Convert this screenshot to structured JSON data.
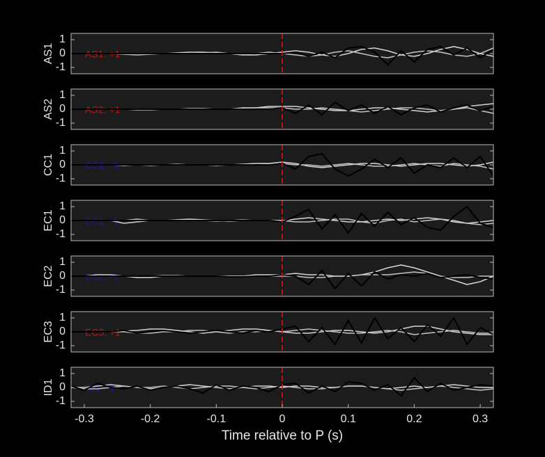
{
  "chart_data": [
    {
      "type": "line",
      "ylabel": "AS1",
      "annotation": "AS1: +1",
      "annotation_color": "#cc1111",
      "xlim": [
        -0.32,
        0.32
      ],
      "ylim": [
        -1.45,
        1.45
      ],
      "yticks": [
        -1,
        0,
        1
      ],
      "marker_x": 0,
      "marker_color": "#dd1111",
      "x": [
        -0.32,
        -0.3,
        -0.28,
        -0.26,
        -0.24,
        -0.22,
        -0.2,
        -0.18,
        -0.16,
        -0.14,
        -0.12,
        -0.1,
        -0.08,
        -0.06,
        -0.04,
        -0.02,
        0,
        0.02,
        0.04,
        0.06,
        0.08,
        0.1,
        0.12,
        0.14,
        0.16,
        0.18,
        0.2,
        0.22,
        0.24,
        0.26,
        0.28,
        0.3,
        0.32
      ],
      "series": [
        {
          "color": "#d4d4d4",
          "values": [
            0,
            0,
            0,
            0,
            0,
            0,
            0,
            0,
            0.05,
            0.1,
            0.1,
            0.05,
            0,
            -0.1,
            -0.1,
            0,
            0.1,
            0.2,
            0.1,
            -0.1,
            -0.2,
            0,
            0.3,
            0.4,
            0.2,
            -0.1,
            -0.2,
            0,
            0.3,
            0.5,
            0.3,
            0,
            -0.2
          ]
        },
        {
          "color": "#c4c4c4",
          "values": [
            0,
            0,
            0,
            0,
            -0.05,
            -0.1,
            -0.05,
            0,
            0,
            0,
            0.05,
            0.1,
            0,
            -0.1,
            0,
            0.1,
            0,
            -0.1,
            -0.2,
            -0.1,
            0.1,
            0.2,
            0,
            -0.2,
            -0.3,
            -0.1,
            0.1,
            0.2,
            0.1,
            -0.1,
            -0.2,
            0,
            0.4
          ]
        },
        {
          "color": "#000000",
          "values": [
            0,
            0,
            0,
            0,
            0,
            0,
            0,
            0,
            0,
            0,
            0,
            0,
            0,
            0,
            0,
            0,
            0,
            0.1,
            -0.2,
            0.1,
            -0.3,
            0.4,
            0.5,
            0.1,
            -0.8,
            0.2,
            -0.6,
            0.3,
            0.5,
            -0.1,
            0.4,
            -0.3,
            0.3
          ]
        }
      ]
    },
    {
      "type": "line",
      "ylabel": "AS2",
      "annotation": "AS2: +1",
      "annotation_color": "#cc1111",
      "xlim": [
        -0.32,
        0.32
      ],
      "ylim": [
        -1.45,
        1.45
      ],
      "yticks": [
        -1,
        0,
        1
      ],
      "marker_x": 0,
      "marker_color": "#dd1111",
      "x": [
        -0.32,
        -0.3,
        -0.28,
        -0.26,
        -0.24,
        -0.22,
        -0.2,
        -0.18,
        -0.16,
        -0.14,
        -0.12,
        -0.1,
        -0.08,
        -0.06,
        -0.04,
        -0.02,
        0,
        0.02,
        0.04,
        0.06,
        0.08,
        0.1,
        0.12,
        0.14,
        0.16,
        0.18,
        0.2,
        0.22,
        0.24,
        0.26,
        0.28,
        0.3,
        0.32
      ],
      "series": [
        {
          "color": "#d4d4d4",
          "values": [
            0,
            0,
            0,
            0,
            0,
            0,
            0,
            0,
            0,
            0.05,
            0.05,
            0,
            0,
            0.1,
            0.1,
            0.2,
            0.2,
            0.2,
            0.1,
            0,
            -0.1,
            -0.1,
            0,
            0.1,
            0.1,
            0,
            -0.1,
            -0.2,
            -0.1,
            0,
            0.2,
            0.3,
            0.4
          ]
        },
        {
          "color": "#c4c4c4",
          "values": [
            0,
            0,
            0,
            0,
            0,
            -0.05,
            -0.05,
            0,
            0,
            0,
            0,
            0,
            0,
            0.05,
            0.1,
            0.1,
            0.1,
            0,
            0,
            0.1,
            0,
            -0.1,
            -0.2,
            -0.1,
            0,
            0.1,
            0.1,
            0,
            -0.1,
            0,
            0.1,
            -0.1,
            -0.3
          ]
        },
        {
          "color": "#000000",
          "values": [
            0,
            0,
            0,
            0,
            0,
            0,
            0,
            0,
            0,
            0,
            0,
            0,
            0,
            0,
            0,
            0,
            0.1,
            -0.3,
            0.3,
            -0.4,
            0.5,
            -0.1,
            0.3,
            -0.3,
            0.2,
            -0.4,
            0.1,
            0.3,
            -0.2,
            0.1,
            0.3,
            -0.1,
            0.2
          ]
        }
      ]
    },
    {
      "type": "line",
      "ylabel": "CC1",
      "annotation": "CC1: -1",
      "annotation_color": "#1a1aa8",
      "xlim": [
        -0.32,
        0.32
      ],
      "ylim": [
        -1.45,
        1.45
      ],
      "yticks": [
        -1,
        0,
        1
      ],
      "marker_x": 0,
      "marker_color": "#dd1111",
      "x": [
        -0.32,
        -0.3,
        -0.28,
        -0.26,
        -0.24,
        -0.22,
        -0.2,
        -0.18,
        -0.16,
        -0.14,
        -0.12,
        -0.1,
        -0.08,
        -0.06,
        -0.04,
        -0.02,
        0,
        0.02,
        0.04,
        0.06,
        0.08,
        0.1,
        0.12,
        0.14,
        0.16,
        0.18,
        0.2,
        0.22,
        0.24,
        0.26,
        0.28,
        0.3,
        0.32
      ],
      "series": [
        {
          "color": "#d4d4d4",
          "values": [
            0,
            0,
            0,
            0,
            -0.05,
            0,
            0,
            0,
            0,
            0,
            0,
            0,
            0,
            0.05,
            0.1,
            0.1,
            0.2,
            0.1,
            -0.1,
            -0.2,
            -0.1,
            0,
            0.1,
            0.1,
            0,
            -0.1,
            0,
            0.1,
            0.1,
            0,
            -0.1,
            0,
            0.2
          ]
        },
        {
          "color": "#c4c4c4",
          "values": [
            0,
            0,
            0,
            0,
            0,
            0,
            -0.05,
            0,
            0.05,
            0,
            0,
            -0.05,
            0,
            0,
            0,
            0.05,
            0.1,
            0,
            0,
            -0.1,
            0,
            0.1,
            0,
            -0.1,
            -0.1,
            0,
            0.1,
            0,
            -0.1,
            0.1,
            0,
            -0.1,
            -0.3
          ]
        },
        {
          "color": "#000000",
          "values": [
            0,
            0,
            0,
            0,
            0,
            0,
            0,
            0,
            0,
            0,
            0,
            0,
            0,
            0,
            0,
            0,
            0.1,
            -0.3,
            0.6,
            0.8,
            -0.3,
            -0.8,
            -0.3,
            0.4,
            -0.2,
            0.5,
            -0.6,
            0,
            -0.2,
            0.5,
            -0.2,
            0.6,
            -0.8
          ]
        }
      ]
    },
    {
      "type": "line",
      "ylabel": "EC1",
      "annotation": "EC1: -1",
      "annotation_color": "#1a1aa8",
      "xlim": [
        -0.32,
        0.32
      ],
      "ylim": [
        -1.45,
        1.45
      ],
      "yticks": [
        -1,
        0,
        1
      ],
      "marker_x": 0,
      "marker_color": "#dd1111",
      "x": [
        -0.32,
        -0.3,
        -0.28,
        -0.26,
        -0.24,
        -0.22,
        -0.2,
        -0.18,
        -0.16,
        -0.14,
        -0.12,
        -0.1,
        -0.08,
        -0.06,
        -0.04,
        -0.02,
        0,
        0.02,
        0.04,
        0.06,
        0.08,
        0.1,
        0.12,
        0.14,
        0.16,
        0.18,
        0.2,
        0.22,
        0.24,
        0.26,
        0.28,
        0.3,
        0.32
      ],
      "series": [
        {
          "color": "#d4d4d4",
          "values": [
            0,
            0,
            0,
            0,
            -0.2,
            -0.1,
            0,
            0,
            0.05,
            0.1,
            0.05,
            0,
            -0.05,
            0,
            0,
            0,
            0,
            0.1,
            0.2,
            0.1,
            0,
            -0.1,
            -0.1,
            0,
            0.1,
            0,
            0.1,
            0.2,
            0.1,
            -0.1,
            -0.2,
            -0.1,
            0
          ]
        },
        {
          "color": "#c4c4c4",
          "values": [
            0,
            0,
            0,
            0,
            0,
            0.1,
            0,
            0,
            0,
            0,
            0,
            -0.05,
            0,
            0.05,
            0,
            0,
            0,
            -0.1,
            -0.1,
            0,
            0.1,
            0.1,
            -0.1,
            -0.2,
            0,
            0.1,
            -0.1,
            0,
            0.1,
            0,
            -0.2,
            -0.3,
            -0.2
          ]
        },
        {
          "color": "#000000",
          "values": [
            0,
            0,
            0,
            0,
            0,
            0,
            0,
            0,
            0,
            0,
            0,
            0,
            0,
            0,
            0,
            0,
            -0.1,
            0.3,
            0.8,
            -0.6,
            0.4,
            -0.9,
            0.5,
            -0.4,
            0.6,
            -0.3,
            0.2,
            -0.5,
            -0.7,
            0.3,
            1.0,
            -0.2,
            -0.5
          ]
        }
      ]
    },
    {
      "type": "line",
      "ylabel": "EC2",
      "annotation": "EC2: -1",
      "annotation_color": "#1a1aa8",
      "xlim": [
        -0.32,
        0.32
      ],
      "ylim": [
        -1.45,
        1.45
      ],
      "yticks": [
        -1,
        0,
        1
      ],
      "marker_x": 0,
      "marker_color": "#dd1111",
      "x": [
        -0.32,
        -0.3,
        -0.28,
        -0.26,
        -0.24,
        -0.22,
        -0.2,
        -0.18,
        -0.16,
        -0.14,
        -0.12,
        -0.1,
        -0.08,
        -0.06,
        -0.04,
        -0.02,
        0,
        0.02,
        0.04,
        0.06,
        0.08,
        0.1,
        0.12,
        0.14,
        0.16,
        0.18,
        0.2,
        0.22,
        0.24,
        0.26,
        0.28,
        0.3,
        0.32
      ],
      "series": [
        {
          "color": "#d4d4d4",
          "values": [
            0,
            0,
            0.1,
            0.1,
            0,
            -0.1,
            -0.1,
            0,
            0,
            0,
            0,
            0,
            0,
            0,
            0.1,
            0.1,
            0.1,
            0.2,
            0.1,
            0.1,
            0,
            0,
            0.1,
            0.3,
            0.6,
            0.8,
            0.6,
            0.3,
            0,
            -0.3,
            -0.6,
            -0.4,
            0
          ]
        },
        {
          "color": "#c4c4c4",
          "values": [
            0,
            0,
            0,
            0,
            0,
            0,
            0,
            0.05,
            0.05,
            0,
            0,
            0,
            0,
            0,
            0,
            0,
            0,
            0,
            -0.1,
            -0.1,
            0,
            0,
            0.1,
            0.1,
            0.1,
            0.2,
            0.3,
            0.2,
            0,
            -0.1,
            -0.1,
            0,
            0
          ]
        },
        {
          "color": "#000000",
          "values": [
            0,
            0,
            0,
            0,
            0,
            0,
            0,
            0,
            0,
            0,
            0,
            0,
            -0.05,
            -0.05,
            0,
            0,
            0.1,
            0,
            -0.6,
            0.4,
            -0.9,
            0.2,
            -0.7,
            0.3,
            -0.2,
            0.1,
            0,
            0.2,
            -0.1,
            0,
            0.1,
            -0.1,
            -0.2
          ]
        }
      ]
    },
    {
      "type": "line",
      "ylabel": "EC3",
      "annotation": "EC3: +1",
      "annotation_color": "#cc1111",
      "xlim": [
        -0.32,
        0.32
      ],
      "ylim": [
        -1.45,
        1.45
      ],
      "yticks": [
        -1,
        0,
        1
      ],
      "marker_x": 0,
      "marker_color": "#dd1111",
      "x": [
        -0.32,
        -0.3,
        -0.28,
        -0.26,
        -0.24,
        -0.22,
        -0.2,
        -0.18,
        -0.16,
        -0.14,
        -0.12,
        -0.1,
        -0.08,
        -0.06,
        -0.04,
        -0.02,
        0,
        0.02,
        0.04,
        0.06,
        0.08,
        0.1,
        0.12,
        0.14,
        0.16,
        0.18,
        0.2,
        0.22,
        0.24,
        0.26,
        0.28,
        0.3,
        0.32
      ],
      "series": [
        {
          "color": "#d4d4d4",
          "values": [
            0,
            0,
            0,
            0,
            0.05,
            0.1,
            0.2,
            0.2,
            0.1,
            0,
            -0.1,
            0,
            0.1,
            0.2,
            0.2,
            0.1,
            0,
            -0.1,
            -0.1,
            0,
            0.1,
            0.1,
            0,
            -0.1,
            0,
            0.2,
            0.4,
            0.4,
            0.2,
            0,
            -0.1,
            -0.2,
            -0.2
          ]
        },
        {
          "color": "#c4c4c4",
          "values": [
            0,
            0,
            0,
            0,
            0,
            -0.1,
            -0.1,
            0,
            0,
            0.1,
            0.1,
            0,
            -0.1,
            0,
            0,
            0.1,
            0,
            0.1,
            0.2,
            0.1,
            0,
            -0.1,
            -0.1,
            0,
            0.1,
            0,
            -0.2,
            -0.1,
            0,
            0.1,
            0,
            -0.1,
            -0.1
          ]
        },
        {
          "color": "#000000",
          "values": [
            0,
            0,
            0,
            0,
            0.1,
            -0.1,
            0,
            0.1,
            0,
            -0.1,
            0,
            0.1,
            0,
            -0.1,
            0.1,
            0,
            0.2,
            0.4,
            -0.7,
            0.3,
            -0.9,
            0.8,
            -0.8,
            1.0,
            -0.5,
            0.3,
            -0.7,
            0.5,
            -0.3,
            1.0,
            -0.9,
            0.3,
            -0.2
          ]
        }
      ]
    },
    {
      "type": "line",
      "ylabel": "ID1",
      "annotation": "ID1: -1",
      "annotation_color": "#1a1aa8",
      "xlim": [
        -0.32,
        0.32
      ],
      "ylim": [
        -1.45,
        1.45
      ],
      "yticks": [
        -1,
        0,
        1
      ],
      "marker_x": 0,
      "marker_color": "#dd1111",
      "xticks": [
        -0.3,
        -0.2,
        -0.1,
        0,
        0.1,
        0.2,
        0.3
      ],
      "xlabel": "Time relative to P (s)",
      "x": [
        -0.32,
        -0.3,
        -0.28,
        -0.26,
        -0.24,
        -0.22,
        -0.2,
        -0.18,
        -0.16,
        -0.14,
        -0.12,
        -0.1,
        -0.08,
        -0.06,
        -0.04,
        -0.02,
        0,
        0.02,
        0.04,
        0.06,
        0.08,
        0.1,
        0.12,
        0.14,
        0.16,
        0.18,
        0.2,
        0.22,
        0.24,
        0.26,
        0.28,
        0.3,
        0.32
      ],
      "series": [
        {
          "color": "#d4d4d4",
          "values": [
            0,
            0,
            0.1,
            0.2,
            0.1,
            0,
            -0.1,
            0,
            0.1,
            0.2,
            0.1,
            0,
            -0.1,
            0,
            0.1,
            0.1,
            0,
            0.1,
            0.1,
            0,
            0,
            0.1,
            0.1,
            0,
            -0.1,
            0,
            0.1,
            0,
            0.1,
            0.2,
            0.1,
            0,
            0
          ]
        },
        {
          "color": "#c4c4c4",
          "values": [
            0,
            -0.1,
            -0.1,
            0,
            0.1,
            0,
            0,
            0.1,
            0,
            -0.1,
            0,
            0.1,
            0.1,
            0,
            -0.1,
            0,
            0.1,
            0,
            -0.1,
            -0.1,
            0,
            0.1,
            0.1,
            0,
            -0.1,
            -0.2,
            -0.1,
            0,
            0.1,
            0,
            -0.1,
            -0.2,
            -0.1
          ]
        },
        {
          "color": "#000000",
          "values": [
            0.1,
            -0.2,
            0.3,
            0,
            -0.1,
            0.1,
            -0.2,
            0,
            0.1,
            -0.1,
            -0.4,
            0.2,
            -0.2,
            0.1,
            0,
            -0.3,
            0.2,
            0.3,
            -0.4,
            0.1,
            -0.3,
            0.4,
            0.3,
            -0.2,
            0.2,
            -0.6,
            0.7,
            -0.3,
            0.3,
            -0.2,
            0,
            0.2,
            0.1
          ]
        }
      ]
    }
  ]
}
